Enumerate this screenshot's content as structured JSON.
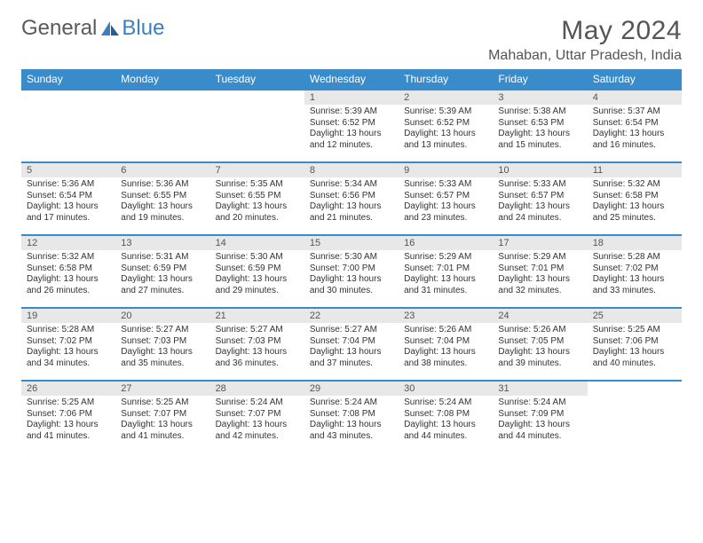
{
  "brand": {
    "part1": "General",
    "part2": "Blue"
  },
  "title": "May 2024",
  "location": "Mahaban, Uttar Pradesh, India",
  "colors": {
    "header_bg": "#3a8bc9",
    "header_text": "#ffffff",
    "daynum_bg": "#e8e8e8",
    "border": "#3a8bc9",
    "text": "#333333",
    "brand_gray": "#5a5a5a",
    "brand_blue": "#3a7fc4"
  },
  "weekdays": [
    "Sunday",
    "Monday",
    "Tuesday",
    "Wednesday",
    "Thursday",
    "Friday",
    "Saturday"
  ],
  "weeks": [
    [
      {
        "n": "",
        "sunrise": "",
        "sunset": "",
        "daylight": ""
      },
      {
        "n": "",
        "sunrise": "",
        "sunset": "",
        "daylight": ""
      },
      {
        "n": "",
        "sunrise": "",
        "sunset": "",
        "daylight": ""
      },
      {
        "n": "1",
        "sunrise": "Sunrise: 5:39 AM",
        "sunset": "Sunset: 6:52 PM",
        "daylight": "Daylight: 13 hours and 12 minutes."
      },
      {
        "n": "2",
        "sunrise": "Sunrise: 5:39 AM",
        "sunset": "Sunset: 6:52 PM",
        "daylight": "Daylight: 13 hours and 13 minutes."
      },
      {
        "n": "3",
        "sunrise": "Sunrise: 5:38 AM",
        "sunset": "Sunset: 6:53 PM",
        "daylight": "Daylight: 13 hours and 15 minutes."
      },
      {
        "n": "4",
        "sunrise": "Sunrise: 5:37 AM",
        "sunset": "Sunset: 6:54 PM",
        "daylight": "Daylight: 13 hours and 16 minutes."
      }
    ],
    [
      {
        "n": "5",
        "sunrise": "Sunrise: 5:36 AM",
        "sunset": "Sunset: 6:54 PM",
        "daylight": "Daylight: 13 hours and 17 minutes."
      },
      {
        "n": "6",
        "sunrise": "Sunrise: 5:36 AM",
        "sunset": "Sunset: 6:55 PM",
        "daylight": "Daylight: 13 hours and 19 minutes."
      },
      {
        "n": "7",
        "sunrise": "Sunrise: 5:35 AM",
        "sunset": "Sunset: 6:55 PM",
        "daylight": "Daylight: 13 hours and 20 minutes."
      },
      {
        "n": "8",
        "sunrise": "Sunrise: 5:34 AM",
        "sunset": "Sunset: 6:56 PM",
        "daylight": "Daylight: 13 hours and 21 minutes."
      },
      {
        "n": "9",
        "sunrise": "Sunrise: 5:33 AM",
        "sunset": "Sunset: 6:57 PM",
        "daylight": "Daylight: 13 hours and 23 minutes."
      },
      {
        "n": "10",
        "sunrise": "Sunrise: 5:33 AM",
        "sunset": "Sunset: 6:57 PM",
        "daylight": "Daylight: 13 hours and 24 minutes."
      },
      {
        "n": "11",
        "sunrise": "Sunrise: 5:32 AM",
        "sunset": "Sunset: 6:58 PM",
        "daylight": "Daylight: 13 hours and 25 minutes."
      }
    ],
    [
      {
        "n": "12",
        "sunrise": "Sunrise: 5:32 AM",
        "sunset": "Sunset: 6:58 PM",
        "daylight": "Daylight: 13 hours and 26 minutes."
      },
      {
        "n": "13",
        "sunrise": "Sunrise: 5:31 AM",
        "sunset": "Sunset: 6:59 PM",
        "daylight": "Daylight: 13 hours and 27 minutes."
      },
      {
        "n": "14",
        "sunrise": "Sunrise: 5:30 AM",
        "sunset": "Sunset: 6:59 PM",
        "daylight": "Daylight: 13 hours and 29 minutes."
      },
      {
        "n": "15",
        "sunrise": "Sunrise: 5:30 AM",
        "sunset": "Sunset: 7:00 PM",
        "daylight": "Daylight: 13 hours and 30 minutes."
      },
      {
        "n": "16",
        "sunrise": "Sunrise: 5:29 AM",
        "sunset": "Sunset: 7:01 PM",
        "daylight": "Daylight: 13 hours and 31 minutes."
      },
      {
        "n": "17",
        "sunrise": "Sunrise: 5:29 AM",
        "sunset": "Sunset: 7:01 PM",
        "daylight": "Daylight: 13 hours and 32 minutes."
      },
      {
        "n": "18",
        "sunrise": "Sunrise: 5:28 AM",
        "sunset": "Sunset: 7:02 PM",
        "daylight": "Daylight: 13 hours and 33 minutes."
      }
    ],
    [
      {
        "n": "19",
        "sunrise": "Sunrise: 5:28 AM",
        "sunset": "Sunset: 7:02 PM",
        "daylight": "Daylight: 13 hours and 34 minutes."
      },
      {
        "n": "20",
        "sunrise": "Sunrise: 5:27 AM",
        "sunset": "Sunset: 7:03 PM",
        "daylight": "Daylight: 13 hours and 35 minutes."
      },
      {
        "n": "21",
        "sunrise": "Sunrise: 5:27 AM",
        "sunset": "Sunset: 7:03 PM",
        "daylight": "Daylight: 13 hours and 36 minutes."
      },
      {
        "n": "22",
        "sunrise": "Sunrise: 5:27 AM",
        "sunset": "Sunset: 7:04 PM",
        "daylight": "Daylight: 13 hours and 37 minutes."
      },
      {
        "n": "23",
        "sunrise": "Sunrise: 5:26 AM",
        "sunset": "Sunset: 7:04 PM",
        "daylight": "Daylight: 13 hours and 38 minutes."
      },
      {
        "n": "24",
        "sunrise": "Sunrise: 5:26 AM",
        "sunset": "Sunset: 7:05 PM",
        "daylight": "Daylight: 13 hours and 39 minutes."
      },
      {
        "n": "25",
        "sunrise": "Sunrise: 5:25 AM",
        "sunset": "Sunset: 7:06 PM",
        "daylight": "Daylight: 13 hours and 40 minutes."
      }
    ],
    [
      {
        "n": "26",
        "sunrise": "Sunrise: 5:25 AM",
        "sunset": "Sunset: 7:06 PM",
        "daylight": "Daylight: 13 hours and 41 minutes."
      },
      {
        "n": "27",
        "sunrise": "Sunrise: 5:25 AM",
        "sunset": "Sunset: 7:07 PM",
        "daylight": "Daylight: 13 hours and 41 minutes."
      },
      {
        "n": "28",
        "sunrise": "Sunrise: 5:24 AM",
        "sunset": "Sunset: 7:07 PM",
        "daylight": "Daylight: 13 hours and 42 minutes."
      },
      {
        "n": "29",
        "sunrise": "Sunrise: 5:24 AM",
        "sunset": "Sunset: 7:08 PM",
        "daylight": "Daylight: 13 hours and 43 minutes."
      },
      {
        "n": "30",
        "sunrise": "Sunrise: 5:24 AM",
        "sunset": "Sunset: 7:08 PM",
        "daylight": "Daylight: 13 hours and 44 minutes."
      },
      {
        "n": "31",
        "sunrise": "Sunrise: 5:24 AM",
        "sunset": "Sunset: 7:09 PM",
        "daylight": "Daylight: 13 hours and 44 minutes."
      },
      {
        "n": "",
        "sunrise": "",
        "sunset": "",
        "daylight": ""
      }
    ]
  ]
}
